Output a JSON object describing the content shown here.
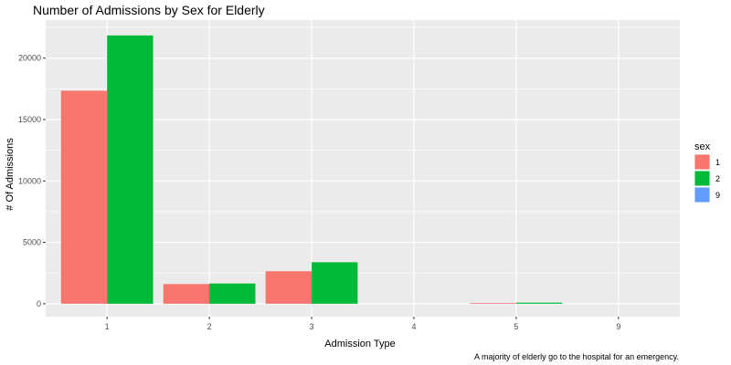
{
  "chart_data": {
    "type": "bar",
    "title": "Number of Admissions by Sex for Elderly",
    "xlabel": "Admission Type",
    "ylabel": "# Of Admissions",
    "caption": "A majority of elderly go to the hospital for an emergency.",
    "categories": [
      "1",
      "2",
      "3",
      "4",
      "5",
      "9"
    ],
    "series": [
      {
        "name": "1",
        "color": "#F8766D",
        "values": [
          17350,
          1600,
          2650,
          0,
          60,
          0
        ]
      },
      {
        "name": "2",
        "color": "#00BA38",
        "values": [
          21850,
          1650,
          3380,
          0,
          90,
          0
        ]
      },
      {
        "name": "9",
        "color": "#619CFF",
        "values": [
          0,
          0,
          0,
          0,
          0,
          0
        ]
      }
    ],
    "ylim": [
      -1050,
      23100
    ],
    "yticks": [
      0,
      5000,
      10000,
      15000,
      20000
    ],
    "ytick_labels": [
      "0",
      "5000",
      "10000",
      "15000",
      "20000"
    ],
    "grid": true,
    "panel_background": "#EBEBEB",
    "legend": {
      "title": "sex",
      "position": "right",
      "entries": [
        {
          "label": "1",
          "color": "#F8766D"
        },
        {
          "label": "2",
          "color": "#00BA38"
        },
        {
          "label": "9",
          "color": "#619CFF"
        }
      ]
    }
  }
}
